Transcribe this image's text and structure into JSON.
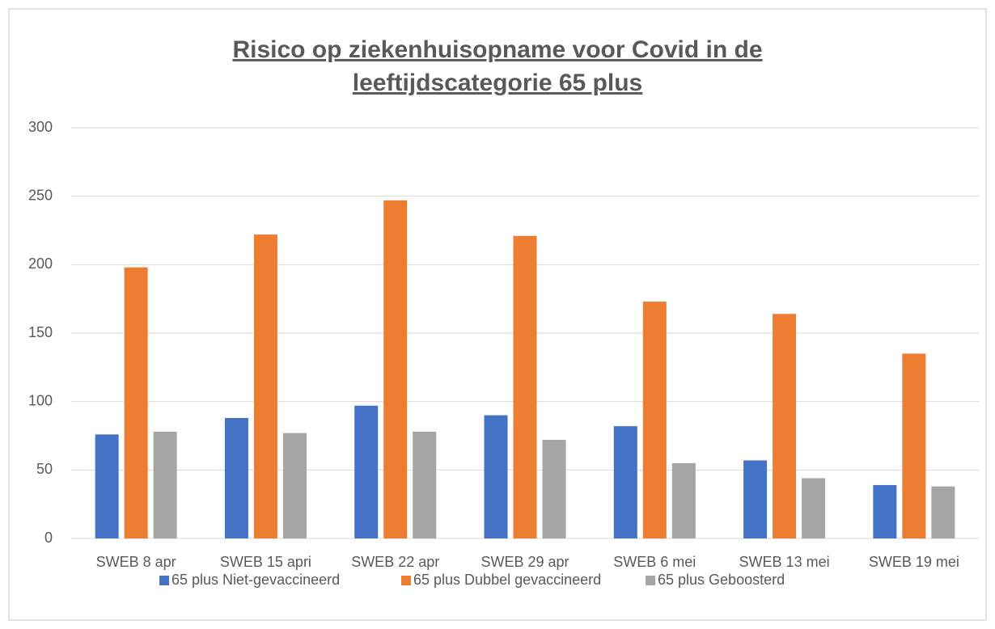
{
  "chart_data": {
    "type": "bar",
    "title": [
      "Risico op ziekenhuisopname voor Covid in de",
      "leeftijdscategorie 65 plus"
    ],
    "categories": [
      "SWEB 8 apr",
      "SWEB 15 apri",
      "SWEB 22 apr",
      "SWEB 29 apr",
      "SWEB 6 mei",
      "SWEB 13 mei",
      "SWEB 19 mei"
    ],
    "series": [
      {
        "name": "65 plus Niet-gevaccineerd",
        "color": "#4472c4",
        "values": [
          76,
          88,
          97,
          90,
          82,
          57,
          39
        ]
      },
      {
        "name": "65 plus Dubbel gevaccineerd",
        "color": "#ed7d31",
        "values": [
          198,
          222,
          247,
          221,
          173,
          164,
          135
        ]
      },
      {
        "name": "65 plus Geboosterd",
        "color": "#a5a5a5",
        "values": [
          78,
          77,
          78,
          72,
          55,
          44,
          38
        ]
      }
    ],
    "ylim": [
      0,
      300
    ],
    "yticks": [
      0,
      50,
      100,
      150,
      200,
      250,
      300
    ],
    "grid": true,
    "legend": "bottom"
  }
}
